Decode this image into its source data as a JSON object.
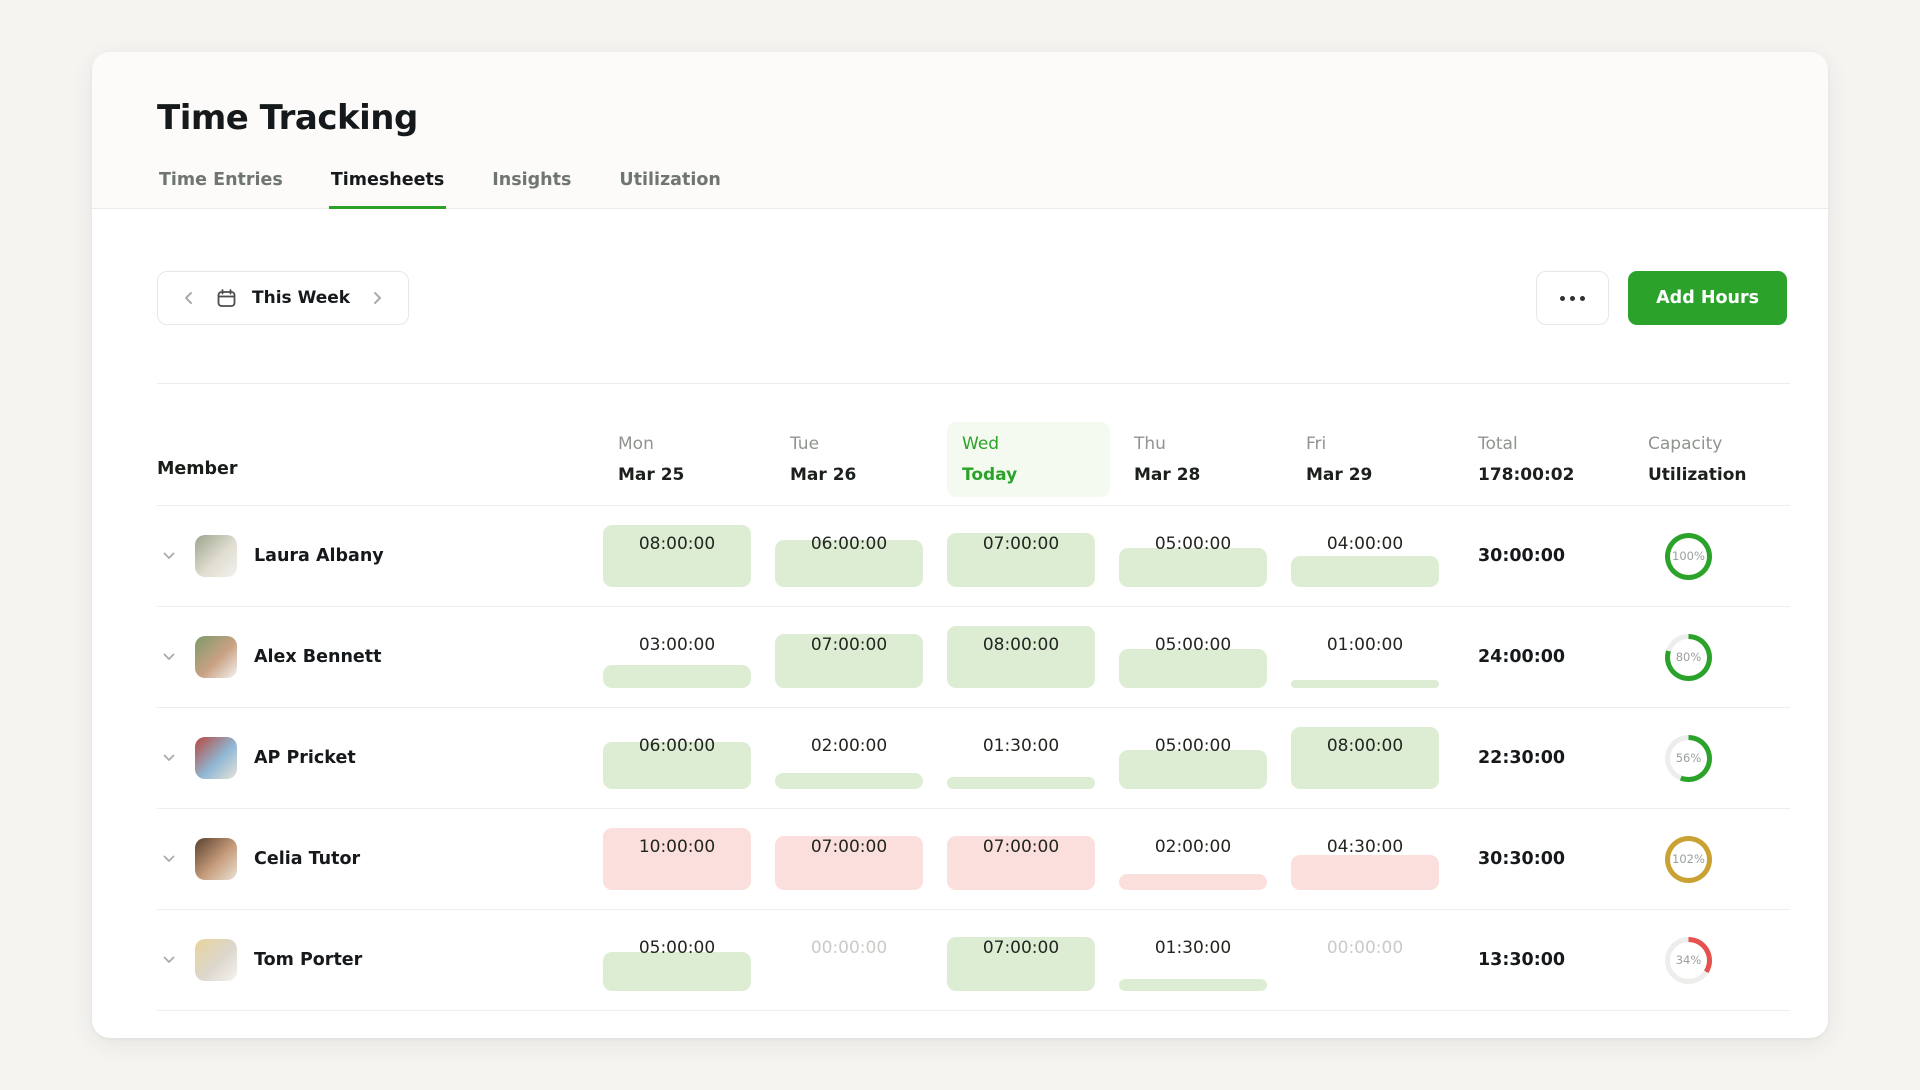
{
  "app": {
    "title": "Time Tracking"
  },
  "tabs": [
    {
      "label": "Time Entries",
      "active": false
    },
    {
      "label": "Timesheets",
      "active": true
    },
    {
      "label": "Insights",
      "active": false
    },
    {
      "label": "Utilization",
      "active": false
    }
  ],
  "toolbar": {
    "week_label": "This Week",
    "add_hours_label": "Add Hours"
  },
  "colors": {
    "accent": "#2BA32B",
    "cell_green": "#DDEDD4",
    "cell_red": "#FBDFDC",
    "today_bg": "#F5FAF0",
    "zero_text": "#C9CBC7",
    "ring_green": "#2BA32B",
    "ring_gold": "#C9A233",
    "ring_red": "#E4514E",
    "ring_track": "#EDEDEB"
  },
  "table": {
    "member_header": "Member",
    "day_columns": [
      {
        "day": "Mon",
        "date": "Mar 25",
        "today": false
      },
      {
        "day": "Tue",
        "date": "Mar 26",
        "today": false
      },
      {
        "day": "Wed",
        "date": "Today",
        "today": true
      },
      {
        "day": "Thu",
        "date": "Mar 28",
        "today": false
      },
      {
        "day": "Fri",
        "date": "Mar 29",
        "today": false
      }
    ],
    "total_column": {
      "label": "Total",
      "value": "178:00:02"
    },
    "capacity_column": {
      "label": "Capacity",
      "sublabel": "Utilization"
    },
    "rows": [
      {
        "name": "Laura Albany",
        "avatar_colors": [
          "#9aa48c",
          "#e0ddd0",
          "#f2f1ec"
        ],
        "cells": [
          {
            "time": "08:00:00",
            "hours": 8,
            "status": "ok"
          },
          {
            "time": "06:00:00",
            "hours": 6,
            "status": "ok"
          },
          {
            "time": "07:00:00",
            "hours": 7,
            "status": "ok"
          },
          {
            "time": "05:00:00",
            "hours": 5,
            "status": "ok"
          },
          {
            "time": "04:00:00",
            "hours": 4,
            "status": "ok"
          }
        ],
        "total": "30:00:00",
        "utilization_pct": 100,
        "utilization_label": "100%",
        "ring": "green"
      },
      {
        "name": "Alex Bennett",
        "avatar_colors": [
          "#7d9a6a",
          "#c9a183",
          "#f4f2ee"
        ],
        "cells": [
          {
            "time": "03:00:00",
            "hours": 3,
            "status": "ok"
          },
          {
            "time": "07:00:00",
            "hours": 7,
            "status": "ok"
          },
          {
            "time": "08:00:00",
            "hours": 8,
            "status": "ok"
          },
          {
            "time": "05:00:00",
            "hours": 5,
            "status": "ok"
          },
          {
            "time": "01:00:00",
            "hours": 1,
            "status": "ok"
          }
        ],
        "total": "24:00:00",
        "utilization_pct": 80,
        "utilization_label": "80%",
        "ring": "green"
      },
      {
        "name": "AP Pricket",
        "avatar_colors": [
          "#b8473d",
          "#8fb7d4",
          "#e8e2da"
        ],
        "cells": [
          {
            "time": "06:00:00",
            "hours": 6,
            "status": "ok"
          },
          {
            "time": "02:00:00",
            "hours": 2,
            "status": "ok"
          },
          {
            "time": "01:30:00",
            "hours": 1.5,
            "status": "ok"
          },
          {
            "time": "05:00:00",
            "hours": 5,
            "status": "ok"
          },
          {
            "time": "08:00:00",
            "hours": 8,
            "status": "ok"
          }
        ],
        "total": "22:30:00",
        "utilization_pct": 56,
        "utilization_label": "56%",
        "ring": "green"
      },
      {
        "name": "Celia Tutor",
        "avatar_colors": [
          "#59402f",
          "#c69c7c",
          "#e9e2d4"
        ],
        "cells": [
          {
            "time": "10:00:00",
            "hours": 10,
            "status": "over"
          },
          {
            "time": "07:00:00",
            "hours": 7,
            "status": "over"
          },
          {
            "time": "07:00:00",
            "hours": 7,
            "status": "over"
          },
          {
            "time": "02:00:00",
            "hours": 2,
            "status": "over"
          },
          {
            "time": "04:30:00",
            "hours": 4.5,
            "status": "over"
          }
        ],
        "total": "30:30:00",
        "utilization_pct": 100,
        "utilization_label": "102%",
        "ring": "gold"
      },
      {
        "name": "Tom Porter",
        "avatar_colors": [
          "#e8d49a",
          "#dcd6cc",
          "#f5f3ef"
        ],
        "cells": [
          {
            "time": "05:00:00",
            "hours": 5,
            "status": "ok"
          },
          {
            "time": "00:00:00",
            "hours": 0,
            "status": "zero"
          },
          {
            "time": "07:00:00",
            "hours": 7,
            "status": "ok"
          },
          {
            "time": "01:30:00",
            "hours": 1.5,
            "status": "ok"
          },
          {
            "time": "00:00:00",
            "hours": 0,
            "status": "zero"
          }
        ],
        "total": "13:30:00",
        "utilization_pct": 34,
        "utilization_label": "34%",
        "ring": "red"
      }
    ]
  }
}
